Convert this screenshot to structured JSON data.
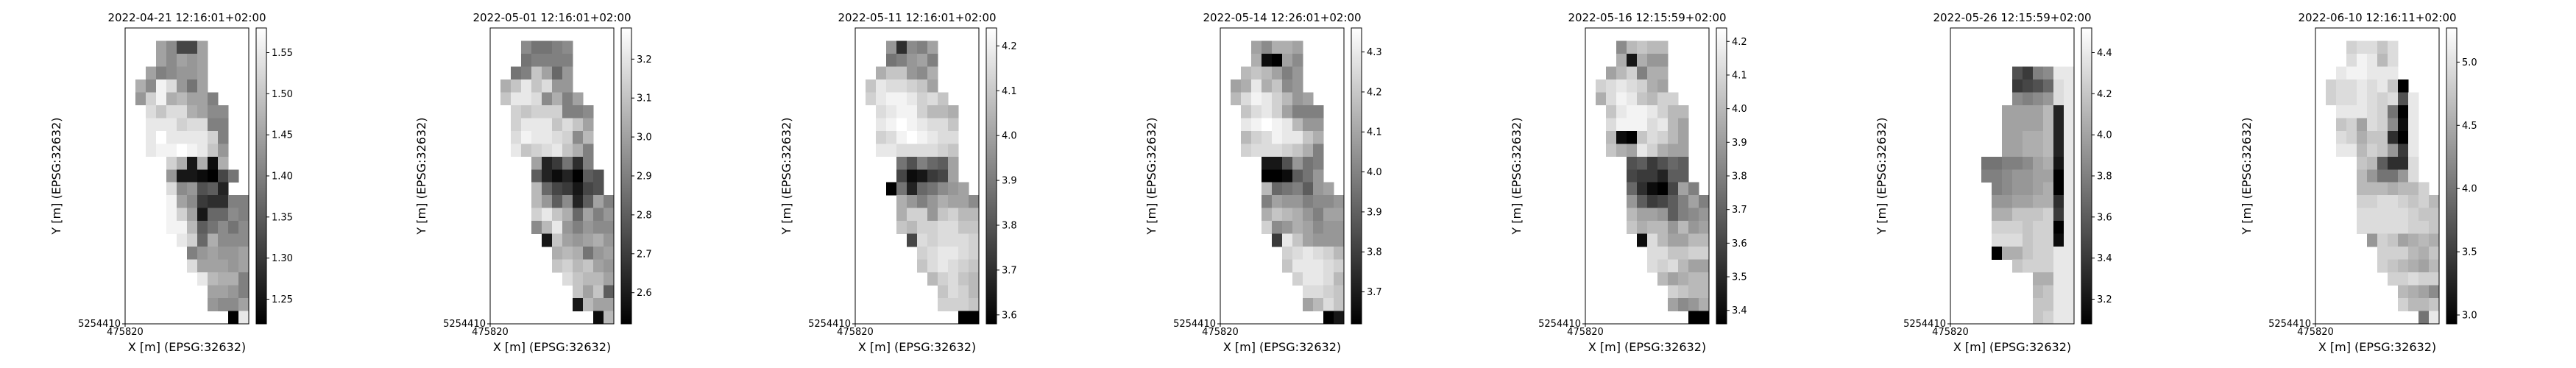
{
  "figure": {
    "background": "#ffffff",
    "colormap": "gray (black = low, white = high)"
  },
  "chart_data": [
    {
      "type": "heatmap",
      "title": "2022-04-21 12:16:01+02:00",
      "xlabel": "X [m] (EPSG:32632)",
      "ylabel": "Y [m] (EPSG:32632)",
      "x_tick": "475820",
      "y_tick": "5254410",
      "colorbar": {
        "ticks": [
          "1.25",
          "1.30",
          "1.35",
          "1.40",
          "1.45",
          "1.50",
          "1.55"
        ],
        "values": [
          1.25,
          1.3,
          1.35,
          1.4,
          1.45,
          1.5,
          1.55
        ],
        "range": [
          1.22,
          1.58
        ]
      },
      "grid": [
        "............",
        "...NLFFN....",
        "...NLNMN....",
        "..NKLMMN....",
        ".OLUSMJN....",
        ".MRUOPNNK...",
        "..SQSSONLL..",
        "..TTTRSSKK..",
        "..TVTTTTRK..",
        "..TUUVUTQM..",
        "....ROBOAO..",
        "....MBBA@FJ.",
        "....SLMGHC..",
        "....UNLEDDKK",
        "....URNBIILK",
        "....UUPHJLJL",
        ".....TRIOLLL",
        "......KMNMMN",
        "......SNNNMN",
        ".......TPOOK",
        "........NNMK",
        "........MLLN",
        "..........@T"
      ]
    },
    {
      "type": "heatmap",
      "title": "2022-05-01 12:16:01+02:00",
      "xlabel": "X [m] (EPSG:32632)",
      "ylabel": "Y [m] (EPSG:32632)",
      "x_tick": "475820",
      "y_tick": "5254410",
      "colorbar": {
        "ticks": [
          "2.6",
          "2.7",
          "2.8",
          "2.9",
          "3.0",
          "3.1",
          "3.2"
        ],
        "values": [
          2.6,
          2.7,
          2.8,
          2.9,
          3.0,
          3.1,
          3.2
        ],
        "range": [
          2.52,
          3.28
        ]
      },
      "grid": [
        "............",
        "...LJJKL....",
        "...JKKKK....",
        "..JKQNIM....",
        ".OQTQSMM....",
        ".QTTSLOKN...",
        "..RQRRRKKL..",
        "..RTTTQSQN..",
        "..SUTTSRLP..",
        "..TQRSTQOK..",
        "....NCEJDK..",
        "....HCAC@HG.",
        "....PIFEBFG.",
        "....PMHLCHNK",
        "....RTQOINKM",
        "....LPTMKMLL",
        ".....BQNMNOM",
        "......OPOJMN",
        "......QRPQNM",
        ".......SQPPN",
        "........QNQH",
        "........BPNN",
        "..........AP"
      ]
    },
    {
      "type": "heatmap",
      "title": "2022-05-11 12:16:01+02:00",
      "xlabel": "X [m] (EPSG:32632)",
      "ylabel": "Y [m] (EPSG:32632)",
      "x_tick": "475820",
      "y_tick": "5254410",
      "colorbar": {
        "ticks": [
          "3.6",
          "3.7",
          "3.8",
          "3.9",
          "4.0",
          "4.1",
          "4.2"
        ],
        "values": [
          3.6,
          3.7,
          3.8,
          3.9,
          4.0,
          4.1,
          4.2
        ],
        "range": [
          3.58,
          4.24
        ]
      },
      "grid": [
        "............",
        "...MDLKN....",
        "...JKMNK....",
        "..OQQMLO....",
        ".QTSSRQN....",
        ".RTUUTRSQ...",
        "..STUURPPO..",
        "..TUVUTSSQ..",
        "..RSUVUTSS..",
        "..TTSSSSRQ..",
        "....JGKIHN..",
        "....FABEFN..",
        "...@JCIJLMN.",
        "....OMKMONNL",
        "....ORRMQRPP",
        "....QPRRSSQQ",
        ".....FSRSSSR",
        "......RSTTSR",
        "......QSTSRQ",
        ".......PRSQP",
        "........QSRP",
        "........RRRQ",
        "..........@@"
      ]
    },
    {
      "type": "heatmap",
      "title": "2022-05-14 12:26:01+02:00",
      "xlabel": "X [m] (EPSG:32632)",
      "ylabel": "Y [m] (EPSG:32632)",
      "x_tick": "475820",
      "y_tick": "5254410",
      "colorbar": {
        "ticks": [
          "3.7",
          "3.8",
          "3.9",
          "4.0",
          "4.1",
          "4.2",
          "4.3"
        ],
        "values": [
          3.7,
          3.8,
          3.9,
          4.0,
          4.1,
          4.2,
          4.3
        ],
        "range": [
          3.62,
          4.36
        ]
      },
      "grid": [
        "............",
        "...NLOON....",
        "...OA@NL....",
        "..PQPNKM....",
        ".NOTOQLM....",
        ".PSUTRPMN...",
        "..QSTRNKKK..",
        "..TUVUTPMM..",
        "..PRSUTTQO..",
        "..RSSSRQOK..",
        "....BBGMJK..",
        "....@@AHJM..",
        "....PIJKHMN.",
        "....KNMMKLLM",
        "....OQPOMKNN",
        "....RLMONLMM",
        ".....ETQNMMM",
        "......RSTSRP",
        "......QTTTSR",
        ".......RTTSP",
        "........SSRQ",
        "........NPSQ",
        "..........@B"
      ]
    },
    {
      "type": "heatmap",
      "title": "2022-05-16 12:15:59+02:00",
      "xlabel": "X [m] (EPSG:32632)",
      "ylabel": "Y [m] (EPSG:32632)",
      "x_tick": "475820",
      "y_tick": "5254410",
      "colorbar": {
        "ticks": [
          "3.4",
          "3.5",
          "3.6",
          "3.7",
          "3.8",
          "3.9",
          "4.0",
          "4.1",
          "4.2"
        ],
        "values": [
          3.4,
          3.5,
          3.6,
          3.7,
          3.8,
          3.9,
          4.0,
          4.1,
          4.2
        ],
        "range": [
          3.36,
          4.24
        ]
      },
      "grid": [
        "............",
        "...LPQPP....",
        "...OBOMM....",
        "..NPRKOO....",
        ".RSTSRON....",
        ".OSUTQPRR...",
        "..QTUUTRPP..",
        "..SUUUSTPN..",
        "..PA@QSRPN..",
        "..QONTRONN..",
        "....GHEGIH..",
        "....FEECHH..",
        "....IDA@FNK.",
        "....MHEFHKNK",
        "....PNNMHKLM",
        "....QOPPMPMN",
        ".....ASPNNPP",
        "......SSQQRR",
        "......SRSPNN",
        ".......PNOPP",
        "........RQPP",
        "........NLMO",
        "..........@@"
      ]
    },
    {
      "type": "heatmap",
      "title": "2022-05-26 12:15:59+02:00",
      "xlabel": "X [m] (EPSG:32632)",
      "ylabel": "Y [m] (EPSG:32632)",
      "x_tick": "475820",
      "y_tick": "5254410",
      "colorbar": {
        "ticks": [
          "3.2",
          "3.4",
          "3.6",
          "3.8",
          "4.0",
          "4.2",
          "4.4"
        ],
        "values": [
          3.2,
          3.4,
          3.6,
          3.8,
          4.0,
          4.2,
          4.4
        ],
        "range": [
          3.08,
          4.52
        ]
      },
      "grid": [
        "............",
        "............",
        "............",
        "......GEKLTT",
        "......EFGIST",
        "......LKLMST",
        ".....NNNNPCT",
        ".....NNNNPCT",
        ".....NNOOPCT",
        ".....NNOOPCT",
        "...JJKKLNOBT",
        "...KKLMMNN@T",
        "....KLMMNO@T",
        "....MMNNOODT",
        "....OOQQQRET",
        "....RRRQRR@T",
        "....SSSQRRAT",
        "....@OOQRRTT",
        "......QRRRTT",
        "........OOTT",
        "........PQTT",
        "........QQTT",
        "........QRTT"
      ]
    },
    {
      "type": "heatmap",
      "title": "2022-06-10 12:16:11+02:00",
      "xlabel": "X [m] (EPSG:32632)",
      "ylabel": "Y [m] (EPSG:32632)",
      "x_tick": "475820",
      "y_tick": "5254410",
      "colorbar": {
        "ticks": [
          "3.0",
          "3.5",
          "4.0",
          "4.5",
          "5.0"
        ],
        "values": [
          3.0,
          3.5,
          4.0,
          4.5,
          5.0
        ],
        "range": [
          2.93,
          5.27
        ]
      },
      "grid": [
        "............",
        "...RSSQS....",
        "...SUTPS....",
        "..TUUTTT....",
        ".RSSTSTQ@...",
        ".RSSTSRSGT..",
        "..TTTSRJ@T..",
        "..QRNSRLAT..",
        "..SROQQD@T..",
        "..TTPRQMET..",
        "....QPHDDS..",
        "....PMJJMS..",
        "....PPPOPPR.",
        "....RRSSRQRP",
        "....SSSSSRQQ",
        "....SSSSSRRQ",
        ".....MRQNOPO",
        "......RRRPOQ",
        "......RQPONP",
        ".......RRSRR",
        "........PONL",
        "........RPPQ",
        "..........JT"
      ]
    }
  ]
}
